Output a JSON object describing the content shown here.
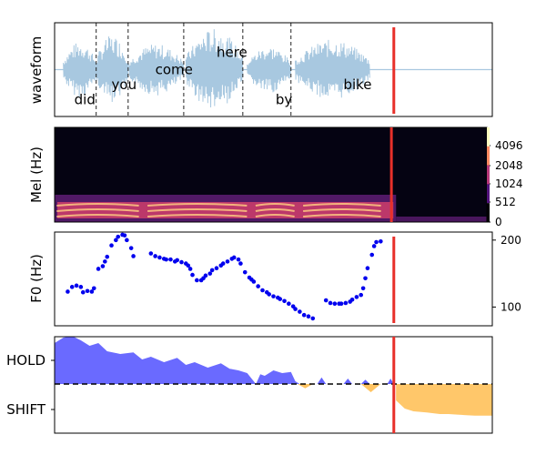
{
  "chart_data": [
    {
      "type": "area",
      "panel": "waveform",
      "ylabel": "waveform",
      "xlim": [
        0,
        1
      ],
      "ylim": [
        -1,
        1
      ],
      "colors": {
        "wave": "#a8c8e0",
        "boundary": "#222222",
        "marker": "#e8302a"
      },
      "words": [
        {
          "text": "did",
          "x": 0.045,
          "y": -0.7
        },
        {
          "text": "you",
          "x": 0.13,
          "y": -0.35
        },
        {
          "text": "come",
          "x": 0.23,
          "y": 0.0
        },
        {
          "text": "here",
          "x": 0.37,
          "y": 0.4
        },
        {
          "text": "by",
          "x": 0.505,
          "y": -0.7
        },
        {
          "text": "bike",
          "x": 0.66,
          "y": -0.35
        }
      ],
      "boundaries": [
        0.095,
        0.168,
        0.295,
        0.43,
        0.54
      ],
      "segments": [
        {
          "start": 0.02,
          "end": 0.095,
          "amp": 0.65
        },
        {
          "start": 0.095,
          "end": 0.168,
          "amp": 0.8
        },
        {
          "start": 0.17,
          "end": 0.295,
          "amp": 0.6
        },
        {
          "start": 0.3,
          "end": 0.43,
          "amp": 0.95
        },
        {
          "start": 0.44,
          "end": 0.54,
          "amp": 0.55
        },
        {
          "start": 0.55,
          "end": 0.72,
          "amp": 0.7
        }
      ],
      "marker_x": 0.775
    },
    {
      "type": "heatmap",
      "panel": "mel",
      "ylabel": "Mel (Hz)",
      "yticks": [
        "0",
        "512",
        "1024",
        "2048",
        "4096"
      ],
      "colors": {
        "bg": "#050312",
        "low": "#5a1c70",
        "mid": "#c23a6a",
        "high": "#f8c080",
        "marker": "#e8302a"
      },
      "speech_end": 0.79,
      "marker_x": 0.775
    },
    {
      "type": "scatter",
      "panel": "f0",
      "ylabel": "F0 (Hz)",
      "yticks": [
        100,
        200
      ],
      "ylim": [
        72,
        212
      ],
      "color": "#0000ee",
      "x": [
        0.03,
        0.04,
        0.05,
        0.06,
        0.065,
        0.075,
        0.085,
        0.09,
        0.1,
        0.11,
        0.115,
        0.12,
        0.13,
        0.14,
        0.145,
        0.155,
        0.16,
        0.165,
        0.175,
        0.18,
        0.22,
        0.23,
        0.24,
        0.25,
        0.255,
        0.265,
        0.275,
        0.28,
        0.29,
        0.3,
        0.305,
        0.31,
        0.315,
        0.325,
        0.335,
        0.34,
        0.345,
        0.355,
        0.36,
        0.37,
        0.38,
        0.385,
        0.395,
        0.405,
        0.41,
        0.42,
        0.425,
        0.435,
        0.445,
        0.45,
        0.455,
        0.465,
        0.475,
        0.485,
        0.49,
        0.5,
        0.51,
        0.515,
        0.525,
        0.535,
        0.545,
        0.55,
        0.56,
        0.57,
        0.58,
        0.59,
        0.62,
        0.63,
        0.64,
        0.65,
        0.655,
        0.665,
        0.675,
        0.68,
        0.69,
        0.7,
        0.705,
        0.71,
        0.715,
        0.725,
        0.73,
        0.735,
        0.745
      ],
      "y": [
        123,
        130,
        132,
        130,
        122,
        124,
        123,
        128,
        157,
        161,
        168,
        175,
        192,
        200,
        205,
        208,
        207,
        200,
        188,
        176,
        180,
        176,
        174,
        172,
        171,
        171,
        168,
        170,
        167,
        165,
        162,
        157,
        148,
        140,
        140,
        143,
        147,
        150,
        155,
        158,
        162,
        165,
        168,
        172,
        174,
        171,
        165,
        152,
        144,
        141,
        138,
        131,
        125,
        122,
        119,
        116,
        114,
        112,
        109,
        105,
        101,
        97,
        93,
        88,
        86,
        83,
        110,
        106,
        105,
        105,
        105,
        106,
        108,
        111,
        115,
        118,
        128,
        143,
        158,
        178,
        191,
        197,
        198
      ],
      "marker_x": 0.775
    },
    {
      "type": "area",
      "panel": "hold-shift",
      "yticks": [
        "HOLD",
        "SHIFT"
      ],
      "ylim": [
        -1,
        1
      ],
      "colors": {
        "hold": "#6262ff",
        "shift": "#ffc462",
        "zero": "#000000",
        "marker": "#e8302a"
      },
      "hold_x": [
        0.0,
        0.02,
        0.04,
        0.06,
        0.08,
        0.1,
        0.12,
        0.15,
        0.18,
        0.2,
        0.22,
        0.25,
        0.28,
        0.3,
        0.32,
        0.35,
        0.38,
        0.4,
        0.42,
        0.44,
        0.45,
        0.46,
        0.47,
        0.48,
        0.5,
        0.52,
        0.54,
        0.55,
        0.56
      ],
      "hold_y": [
        0.75,
        0.85,
        0.88,
        0.8,
        0.7,
        0.75,
        0.6,
        0.55,
        0.58,
        0.45,
        0.5,
        0.4,
        0.48,
        0.35,
        0.4,
        0.3,
        0.38,
        0.28,
        0.25,
        0.2,
        0.1,
        0.0,
        0.18,
        0.15,
        0.25,
        0.2,
        0.22,
        0.05,
        0.0
      ],
      "shift_x": [
        0.78,
        0.8,
        0.82,
        0.85,
        0.88,
        0.9,
        0.92,
        0.94,
        0.96,
        0.98,
        1.0
      ],
      "shift_y": [
        -0.3,
        -0.45,
        -0.5,
        -0.52,
        -0.55,
        -0.55,
        -0.56,
        -0.57,
        -0.58,
        -0.58,
        -0.58
      ],
      "marker_x": 0.775
    }
  ]
}
